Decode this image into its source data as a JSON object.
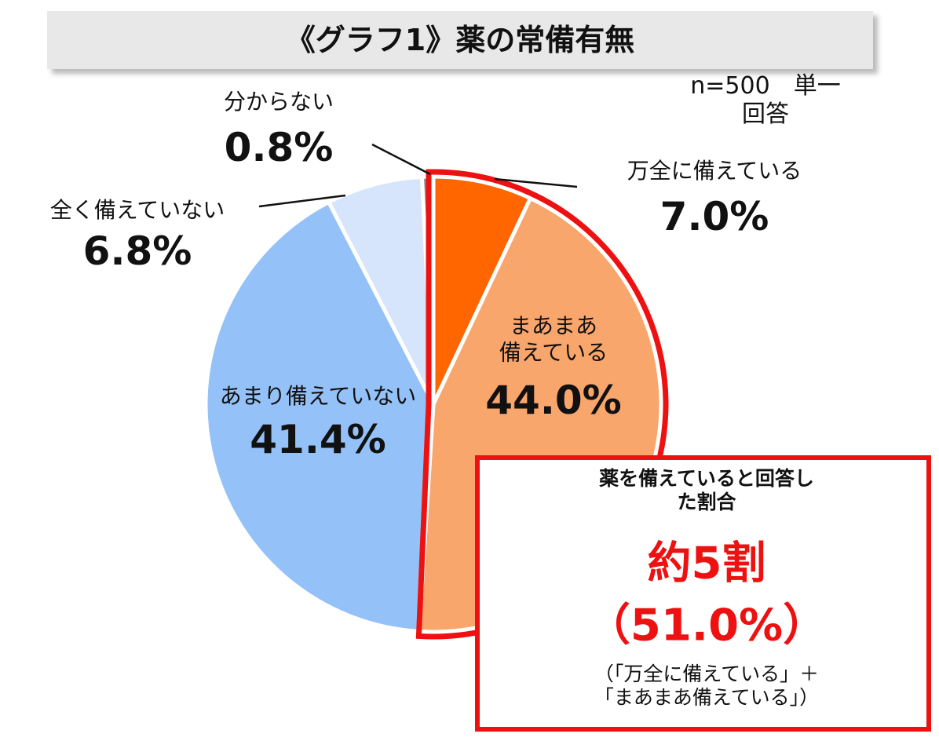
{
  "chart_data": {
    "type": "pie",
    "title": "《グラフ1》薬の常備有無",
    "note": "n=500　単一回答",
    "categories": [
      "万全に備えている",
      "まあまあ\n備えている",
      "あまり備えていない",
      "全く備えていない",
      "分からない"
    ],
    "values": [
      7.0,
      44.0,
      41.4,
      6.8,
      0.8
    ],
    "value_labels": [
      "7.0%",
      "44.0%",
      "41.4%",
      "6.8%",
      "0.8%"
    ],
    "colors": [
      "#ff6600",
      "#f9a66c",
      "#94c1f8",
      "#d6e5fb",
      "#8c8c8c"
    ],
    "callout": {
      "heading": "薬を備えていると回答した割合",
      "main": "約5割",
      "percent": "（51.0%）",
      "detail": "（「万全に備えている」＋\n「まあまあ備えている」）"
    }
  }
}
